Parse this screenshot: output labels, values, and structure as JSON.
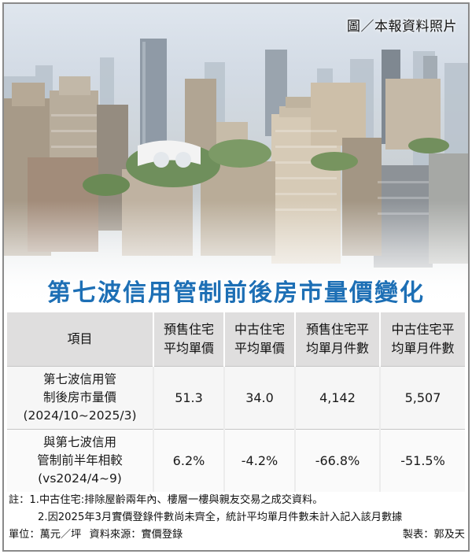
{
  "credit": "圖／本報資料照片",
  "title": "第七波信用管制前後房市量價變化",
  "table": {
    "headers": [
      "項目",
      [
        "預售住宅",
        "平均單價"
      ],
      [
        "中古住宅",
        "平均單價"
      ],
      [
        "預售住宅平",
        "均單月件數"
      ],
      [
        "中古住宅平",
        "均單月件數"
      ]
    ],
    "rows": [
      {
        "label": [
          "第七波信用管",
          "制後房市量價",
          "(2024/10~2025/3)"
        ],
        "values": [
          "51.3",
          "34.0",
          "4,142",
          "5,507"
        ]
      },
      {
        "label": [
          "與第七波信用",
          "管制前半年相較",
          "(vs2024/4~9)"
        ],
        "values": [
          "6.2%",
          "-4.2%",
          "-66.8%",
          "-51.5%"
        ]
      }
    ]
  },
  "notes": {
    "note1": "註：1.中古住宅:排除屋齡兩年內、樓層一樓與親友交易之成交資料。",
    "note2": "2.因2025年3月實價登錄件數尚未齊全，統計平均單月件數未計入記入該月數據",
    "unit": "單位：萬元／坪",
    "source": "資料來源：實價登錄",
    "maker": "製表：郭及天"
  }
}
